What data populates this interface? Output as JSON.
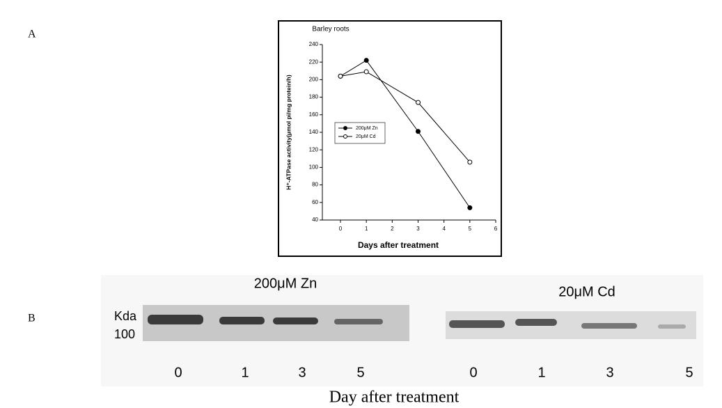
{
  "panel_a_label": "A",
  "chart_data": {
    "type": "line",
    "title": "Barley roots",
    "x_label": "Days after treatment",
    "y_label": "H⁺-ATPase activity(μmol pi/mg protein/h)",
    "x": [
      0,
      1,
      3,
      5
    ],
    "series": [
      {
        "name": "200μM Zn",
        "color": "#000000",
        "marker": "filled",
        "values": [
          204,
          222,
          141,
          54
        ]
      },
      {
        "name": "20μM Cd",
        "color": "#000000",
        "marker": "open",
        "values": [
          204,
          209,
          174,
          106
        ]
      }
    ],
    "xlim": [
      -0.7,
      6
    ],
    "xticks": [
      0,
      1,
      2,
      3,
      4,
      5,
      6
    ],
    "ylim": [
      40,
      240
    ],
    "yticks": [
      40,
      60,
      80,
      100,
      120,
      140,
      160,
      180,
      200,
      220,
      240
    ],
    "legend": "left"
  },
  "panel_b": {
    "label": "B",
    "unit": "Kda",
    "marker": "100",
    "groups": [
      {
        "name": "200μM Zn",
        "lanes": [
          "0",
          "1",
          "3",
          "5"
        ]
      },
      {
        "name": "20μM Cd",
        "lanes": [
          "0",
          "1",
          "3",
          "5"
        ]
      }
    ],
    "x_label": "Day after treatment"
  }
}
